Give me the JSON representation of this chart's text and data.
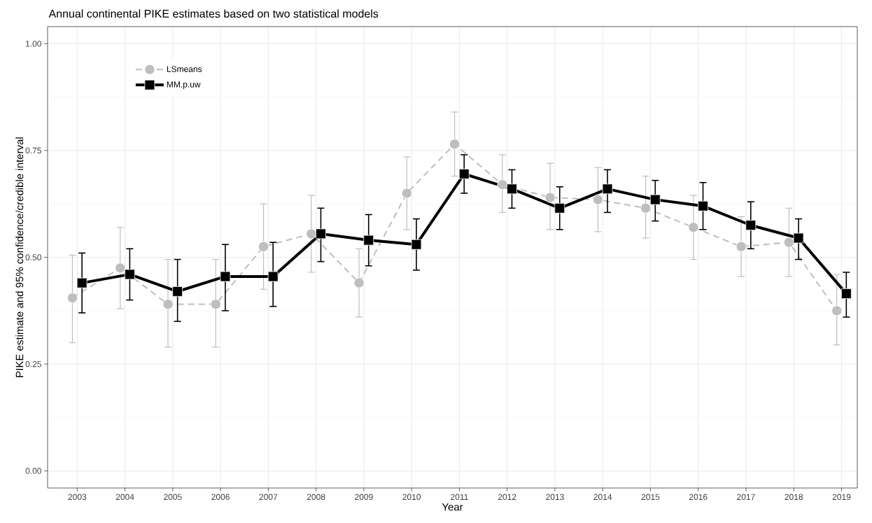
{
  "chart_data": {
    "type": "line",
    "title": "Annual continental PIKE estimates based on two statistical models",
    "xlabel": "Year",
    "ylabel": "PIKE estimate and 95% confidence/credible interval",
    "categories": [
      "2003",
      "2004",
      "2005",
      "2006",
      "2007",
      "2008",
      "2009",
      "2010",
      "2011",
      "2012",
      "2013",
      "2014",
      "2015",
      "2016",
      "2017",
      "2018",
      "2019"
    ],
    "series": [
      {
        "name": "LSmeans",
        "color": "#bebebe",
        "marker": "circle",
        "line_style": "dashed",
        "values": [
          0.405,
          0.475,
          0.39,
          0.39,
          0.525,
          0.555,
          0.44,
          0.65,
          0.765,
          0.67,
          0.64,
          0.635,
          0.615,
          0.57,
          0.525,
          0.535,
          0.375
        ],
        "errors": [
          [
            0.3,
            0.505
          ],
          [
            0.38,
            0.57
          ],
          [
            0.29,
            0.495
          ],
          [
            0.29,
            0.495
          ],
          [
            0.425,
            0.625
          ],
          [
            0.465,
            0.645
          ],
          [
            0.36,
            0.52
          ],
          [
            0.565,
            0.735
          ],
          [
            0.69,
            0.84
          ],
          [
            0.605,
            0.74
          ],
          [
            0.565,
            0.72
          ],
          [
            0.56,
            0.71
          ],
          [
            0.545,
            0.69
          ],
          [
            0.495,
            0.645
          ],
          [
            0.455,
            0.595
          ],
          [
            0.455,
            0.615
          ],
          [
            0.295,
            0.46
          ]
        ]
      },
      {
        "name": "MM.p.uw",
        "color": "#000000",
        "marker": "square",
        "line_style": "solid",
        "values": [
          0.44,
          0.46,
          0.42,
          0.455,
          0.455,
          0.555,
          0.54,
          0.53,
          0.695,
          0.66,
          0.615,
          0.66,
          0.635,
          0.62,
          0.575,
          0.545,
          0.415
        ],
        "errors": [
          [
            0.37,
            0.51
          ],
          [
            0.4,
            0.52
          ],
          [
            0.35,
            0.495
          ],
          [
            0.375,
            0.53
          ],
          [
            0.385,
            0.535
          ],
          [
            0.49,
            0.615
          ],
          [
            0.48,
            0.6
          ],
          [
            0.47,
            0.59
          ],
          [
            0.65,
            0.74
          ],
          [
            0.615,
            0.705
          ],
          [
            0.565,
            0.665
          ],
          [
            0.605,
            0.705
          ],
          [
            0.585,
            0.68
          ],
          [
            0.565,
            0.675
          ],
          [
            0.52,
            0.63
          ],
          [
            0.495,
            0.59
          ],
          [
            0.36,
            0.465
          ]
        ]
      }
    ],
    "ylim": [
      -0.04,
      1.04
    ],
    "yticks": [
      {
        "value": 0,
        "label": "0.00"
      },
      {
        "value": 0.25,
        "label": "0.25"
      },
      {
        "value": 0.5,
        "label": "0.50"
      },
      {
        "value": 0.75,
        "label": "0.75"
      },
      {
        "value": 1,
        "label": "1.00"
      }
    ],
    "grid": true,
    "legend": "top left"
  }
}
